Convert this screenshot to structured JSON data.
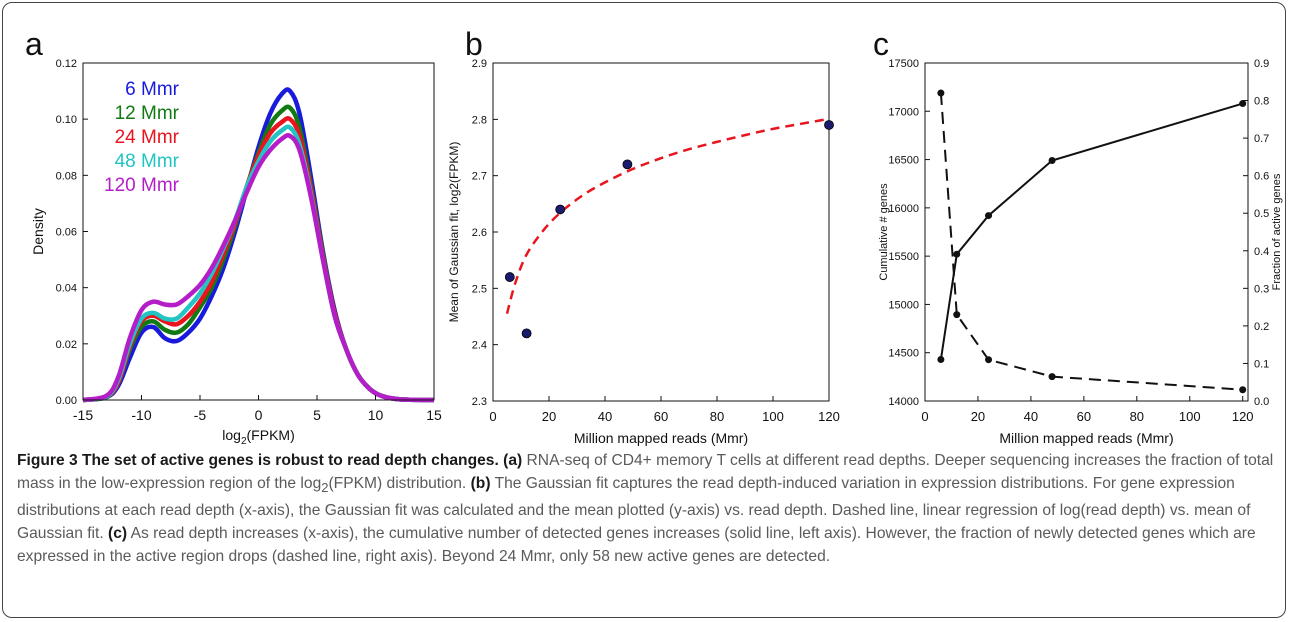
{
  "chart_data": [
    {
      "type": "line",
      "panel_label": "a",
      "xlabel_main": "log",
      "xlabel_sub": "2",
      "xlabel_tail": "(FPKM)",
      "ylabel": "Density",
      "xlim": [
        -15,
        15
      ],
      "ylim": [
        0,
        0.12
      ],
      "xticks": [
        "-15",
        "-10",
        "-5",
        "0",
        "5",
        "10",
        "15"
      ],
      "yticks": [
        "0.00",
        "0.02",
        "0.04",
        "0.06",
        "0.08",
        "0.10",
        "0.12"
      ],
      "legend_position": "top-left",
      "series": [
        {
          "name": "6 Mmr",
          "color": "#1a1adc",
          "x": [
            -15,
            -13,
            -12,
            -11,
            -10,
            -9,
            -8,
            -7,
            -6,
            -5,
            -4,
            -3,
            -2,
            -1,
            0,
            1,
            2,
            2.7,
            3.5,
            4.5,
            5.5,
            6.5,
            7.5,
            8.5,
            9.5,
            10.5,
            12,
            15
          ],
          "y": [
            0,
            0.001,
            0.005,
            0.015,
            0.024,
            0.026,
            0.022,
            0.021,
            0.024,
            0.029,
            0.037,
            0.047,
            0.06,
            0.075,
            0.09,
            0.102,
            0.109,
            0.11,
            0.102,
            0.079,
            0.053,
            0.032,
            0.018,
            0.009,
            0.004,
            0.0015,
            0.0003,
            0
          ]
        },
        {
          "name": "12 Mmr",
          "color": "#127a12",
          "x": [
            -15,
            -13,
            -12,
            -11,
            -10,
            -9,
            -8,
            -7,
            -6,
            -5,
            -4,
            -3,
            -2,
            -1,
            0,
            1,
            2,
            2.7,
            3.5,
            4.5,
            5.5,
            6.5,
            7.5,
            8.5,
            9.5,
            10.5,
            12,
            15
          ],
          "y": [
            0,
            0.001,
            0.006,
            0.018,
            0.026,
            0.028,
            0.025,
            0.024,
            0.027,
            0.033,
            0.04,
            0.05,
            0.062,
            0.076,
            0.088,
            0.098,
            0.103,
            0.104,
            0.097,
            0.076,
            0.052,
            0.031,
            0.018,
            0.009,
            0.004,
            0.0015,
            0.0003,
            0
          ]
        },
        {
          "name": "24 Mmr",
          "color": "#e8141e",
          "x": [
            -15,
            -13,
            -12,
            -11,
            -10,
            -9,
            -8,
            -7,
            -6,
            -5,
            -4,
            -3,
            -2,
            -1,
            0,
            1,
            2,
            2.7,
            3.5,
            4.5,
            5.5,
            6.5,
            7.5,
            8.5,
            9.5,
            10.5,
            12,
            15
          ],
          "y": [
            0,
            0.0012,
            0.006,
            0.019,
            0.028,
            0.03,
            0.028,
            0.027,
            0.03,
            0.035,
            0.042,
            0.052,
            0.063,
            0.076,
            0.087,
            0.095,
            0.099,
            0.1,
            0.094,
            0.075,
            0.051,
            0.031,
            0.018,
            0.009,
            0.004,
            0.0015,
            0.0003,
            0
          ]
        },
        {
          "name": "48 Mmr",
          "color": "#22c4c4",
          "x": [
            -15,
            -13,
            -12,
            -11,
            -10,
            -9,
            -8,
            -7,
            -6,
            -5,
            -4,
            -3,
            -2,
            -1,
            0,
            1,
            2,
            2.7,
            3.5,
            4.5,
            5.5,
            6.5,
            7.5,
            8.5,
            9.5,
            10.5,
            12,
            15
          ],
          "y": [
            0,
            0.0012,
            0.007,
            0.02,
            0.029,
            0.031,
            0.029,
            0.029,
            0.033,
            0.038,
            0.045,
            0.054,
            0.064,
            0.076,
            0.085,
            0.092,
            0.096,
            0.097,
            0.091,
            0.073,
            0.05,
            0.03,
            0.018,
            0.009,
            0.004,
            0.0015,
            0.0003,
            0
          ]
        },
        {
          "name": "120 Mmr",
          "color": "#b41ec8",
          "x": [
            -15,
            -13,
            -12,
            -11,
            -10,
            -9,
            -8,
            -7,
            -6,
            -5,
            -4,
            -3,
            -2,
            -1,
            0,
            1,
            2,
            2.7,
            3.5,
            4.5,
            5.5,
            6.5,
            7.5,
            8.5,
            9.5,
            10.5,
            12,
            15
          ],
          "y": [
            0,
            0.0015,
            0.008,
            0.022,
            0.032,
            0.035,
            0.034,
            0.034,
            0.037,
            0.041,
            0.047,
            0.055,
            0.064,
            0.074,
            0.083,
            0.089,
            0.093,
            0.094,
            0.089,
            0.072,
            0.05,
            0.03,
            0.018,
            0.009,
            0.004,
            0.0015,
            0.0003,
            0
          ]
        }
      ]
    },
    {
      "type": "scatter",
      "panel_label": "b",
      "xlabel": "Million mapped reads (Mmr)",
      "ylabel": "Mean of Gaussian fit, log2(FPKM)",
      "xlim": [
        0,
        120
      ],
      "ylim": [
        2.3,
        2.9
      ],
      "xticks": [
        "0",
        "20",
        "40",
        "60",
        "80",
        "100",
        "120"
      ],
      "yticks": [
        "2.3",
        "2.4",
        "2.5",
        "2.6",
        "2.7",
        "2.8",
        "2.9"
      ],
      "points": {
        "x": [
          6,
          12,
          24,
          48,
          120
        ],
        "y": [
          2.52,
          2.42,
          2.64,
          2.72,
          2.79
        ]
      },
      "point_color": "#1a1a6e",
      "fit": {
        "x": [
          5,
          8,
          12,
          18,
          24,
          32,
          40,
          50,
          60,
          70,
          80,
          90,
          100,
          110,
          120
        ],
        "y": [
          2.455,
          2.51,
          2.56,
          2.603,
          2.634,
          2.665,
          2.688,
          2.712,
          2.731,
          2.747,
          2.76,
          2.772,
          2.783,
          2.792,
          2.801
        ],
        "color": "#e8141e"
      }
    },
    {
      "type": "line",
      "panel_label": "c",
      "xlabel": "Million mapped reads (Mmr)",
      "ylabel_left": "Cumulative # genes",
      "ylabel_right": "Fraction of active genes",
      "xlim": [
        0,
        122
      ],
      "ylim_left": [
        14000,
        17500
      ],
      "ylim_right": [
        0,
        0.9
      ],
      "xticks": [
        "0",
        "20",
        "40",
        "60",
        "80",
        "100",
        "120"
      ],
      "yticks_left": [
        "14000",
        "14500",
        "15000",
        "15500",
        "16000",
        "16500",
        "17000",
        "17500"
      ],
      "yticks_right": [
        "0.0",
        "0.1",
        "0.2",
        "0.3",
        "0.4",
        "0.5",
        "0.6",
        "0.7",
        "0.8",
        "0.9"
      ],
      "series": [
        {
          "name": "Cumulative # genes",
          "axis": "left",
          "style": "solid",
          "x": [
            6,
            12,
            24,
            48,
            120
          ],
          "y": [
            14430,
            15520,
            15920,
            16490,
            17080
          ]
        },
        {
          "name": "Fraction of active genes",
          "axis": "right",
          "style": "dashed",
          "x": [
            6,
            12,
            24,
            48,
            120
          ],
          "y": [
            0.82,
            0.23,
            0.11,
            0.065,
            0.03
          ]
        }
      ]
    }
  ],
  "caption": {
    "title": "Figure 3 The set of active genes is robust to read depth changes.",
    "a_label": "(a)",
    "a_text1": "RNA-seq of CD4+ memory T cells at different read depths. Deeper sequencing increases the fraction of total mass in the low-expression region of the log",
    "a_sub": "2",
    "a_text2": "(FPKM) distribution.",
    "b_label": "(b)",
    "b_text": "The Gaussian fit captures the read depth-induced variation in expression distributions. For gene expression distributions at each read depth (x-axis), the Gaussian fit was calculated and the mean plotted (y-axis) vs. read depth. Dashed line, linear regression of log(read depth) vs. mean of Gaussian fit.",
    "c_label": "(c)",
    "c_text": "As read depth increases (x-axis), the cumulative number of detected genes increases (solid line, left axis). However, the fraction of newly detected genes which are expressed in the active region drops (dashed line, right axis). Beyond 24 Mmr, only 58 new active genes are detected."
  }
}
